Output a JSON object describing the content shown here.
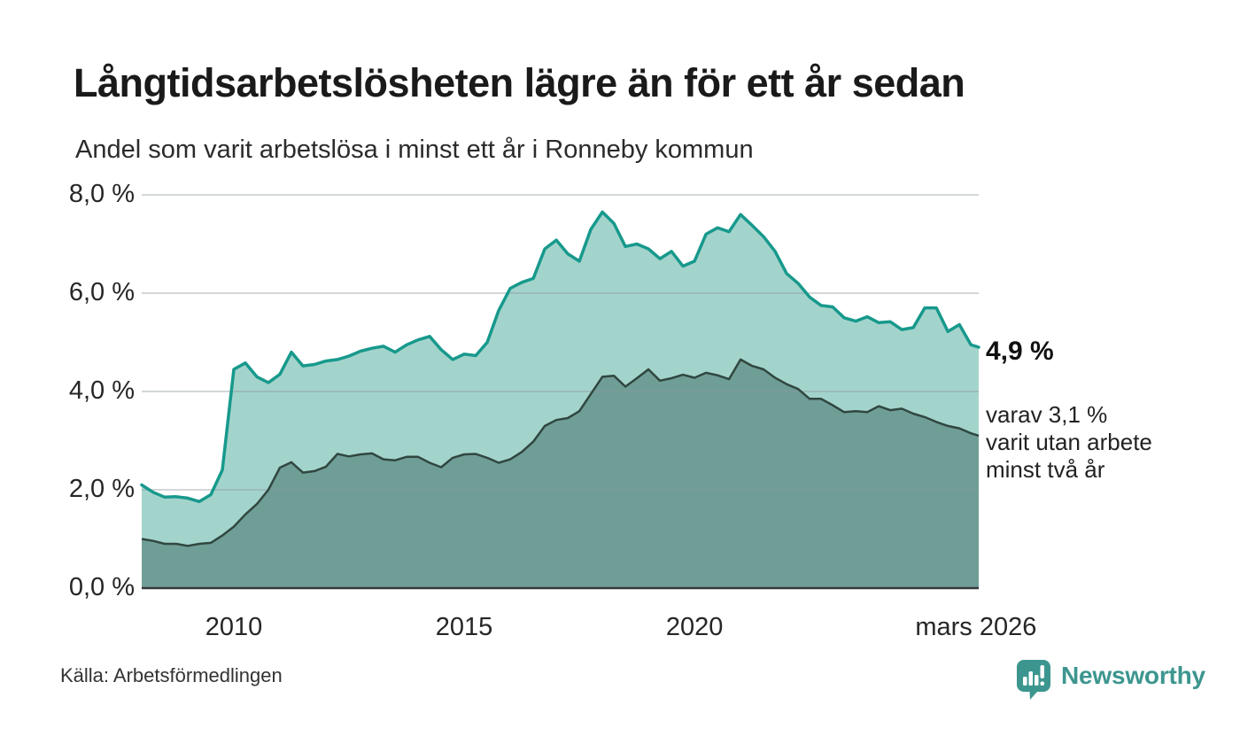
{
  "page": {
    "title": "Långtidsarbetslösheten lägre än för ett år sedan",
    "subtitle": "Andel som varit arbetslösa i minst ett år i Ronneby kommun",
    "source": "Källa: Arbetsförmedlingen",
    "brand": "Newsworthy"
  },
  "colors": {
    "line_1year": "#17998c",
    "fill_1year": "#a3d4cc",
    "line_2year": "#30473f",
    "fill_2year": "#6f9e97",
    "grid": "#8c969b",
    "baseline": "#383838",
    "brand_teal": "#3c968f"
  },
  "annotations": {
    "latest_total": "4,9 %",
    "two_year_line1": "varav 3,1 %",
    "two_year_line2": "varit utan arbete",
    "two_year_line3": "minst två år"
  },
  "chart_data": {
    "type": "area",
    "title": "Långtidsarbetslösheten lägre än för ett år sedan",
    "subtitle": "Andel som varit arbetslösa i minst ett år i Ronneby kommun",
    "source": "Källa: Arbetsförmedlingen",
    "grid": "horizontal",
    "legend_position": "none",
    "unit": "%",
    "ylim": [
      0,
      8
    ],
    "x_range": [
      2008.0,
      2026.17
    ],
    "y_ticks": [
      {
        "label": "0,0 %",
        "value": 0
      },
      {
        "label": "2,0 %",
        "value": 2
      },
      {
        "label": "4,0 %",
        "value": 4
      },
      {
        "label": "6,0 %",
        "value": 6
      },
      {
        "label": "8,0 %",
        "value": 8
      }
    ],
    "x_ticks": [
      {
        "label": "2010",
        "year": 2010
      },
      {
        "label": "2015",
        "year": 2015
      },
      {
        "label": "2020",
        "year": 2020
      },
      {
        "label": "mars 2026",
        "year": 2026.11
      }
    ],
    "x": [
      2008.0,
      2008.25,
      2008.5,
      2008.75,
      2009.0,
      2009.25,
      2009.5,
      2009.75,
      2010.0,
      2010.25,
      2010.5,
      2010.75,
      2011.0,
      2011.25,
      2011.5,
      2011.75,
      2012.0,
      2012.25,
      2012.5,
      2012.75,
      2013.0,
      2013.25,
      2013.5,
      2013.75,
      2014.0,
      2014.25,
      2014.5,
      2014.75,
      2015.0,
      2015.25,
      2015.5,
      2015.75,
      2016.0,
      2016.25,
      2016.5,
      2016.75,
      2017.0,
      2017.25,
      2017.5,
      2017.75,
      2018.0,
      2018.25,
      2018.5,
      2018.75,
      2019.0,
      2019.25,
      2019.5,
      2019.75,
      2020.0,
      2020.25,
      2020.5,
      2020.75,
      2021.0,
      2021.25,
      2021.5,
      2021.75,
      2022.0,
      2022.25,
      2022.5,
      2022.75,
      2023.0,
      2023.25,
      2023.5,
      2023.75,
      2024.0,
      2024.25,
      2024.5,
      2024.75,
      2025.0,
      2025.25,
      2025.5,
      2025.75,
      2026.0,
      2026.17
    ],
    "series": [
      {
        "name": "Andel arbetslösa minst ett år",
        "end_value": 4.9,
        "values": [
          2.1,
          1.95,
          1.85,
          1.86,
          1.83,
          1.76,
          1.9,
          2.4,
          4.45,
          4.58,
          4.3,
          4.18,
          4.35,
          4.8,
          4.52,
          4.55,
          4.62,
          4.65,
          4.72,
          4.82,
          4.88,
          4.92,
          4.8,
          4.95,
          5.05,
          5.12,
          4.85,
          4.65,
          4.76,
          4.73,
          5.0,
          5.65,
          6.1,
          6.22,
          6.3,
          6.9,
          7.08,
          6.8,
          6.65,
          7.3,
          7.65,
          7.42,
          6.95,
          7.0,
          6.9,
          6.7,
          6.85,
          6.55,
          6.65,
          7.2,
          7.33,
          7.25,
          7.6,
          7.38,
          7.15,
          6.85,
          6.4,
          6.2,
          5.92,
          5.75,
          5.72,
          5.5,
          5.43,
          5.52,
          5.4,
          5.42,
          5.26,
          5.3,
          5.7,
          5.7,
          5.22,
          5.36,
          4.95,
          4.9
        ]
      },
      {
        "name": "Andel arbetslösa minst två år",
        "end_value": 3.1,
        "values": [
          1.0,
          0.96,
          0.9,
          0.9,
          0.86,
          0.9,
          0.92,
          1.07,
          1.25,
          1.5,
          1.71,
          2.0,
          2.45,
          2.56,
          2.35,
          2.38,
          2.47,
          2.73,
          2.68,
          2.72,
          2.74,
          2.62,
          2.6,
          2.67,
          2.67,
          2.55,
          2.46,
          2.65,
          2.72,
          2.73,
          2.65,
          2.55,
          2.62,
          2.77,
          2.98,
          3.3,
          3.42,
          3.46,
          3.6,
          3.95,
          4.3,
          4.32,
          4.1,
          4.27,
          4.45,
          4.22,
          4.27,
          4.34,
          4.28,
          4.38,
          4.33,
          4.25,
          4.65,
          4.52,
          4.45,
          4.28,
          4.15,
          4.05,
          3.85,
          3.85,
          3.72,
          3.58,
          3.6,
          3.58,
          3.7,
          3.62,
          3.65,
          3.55,
          3.48,
          3.38,
          3.3,
          3.25,
          3.15,
          3.1
        ]
      }
    ]
  }
}
